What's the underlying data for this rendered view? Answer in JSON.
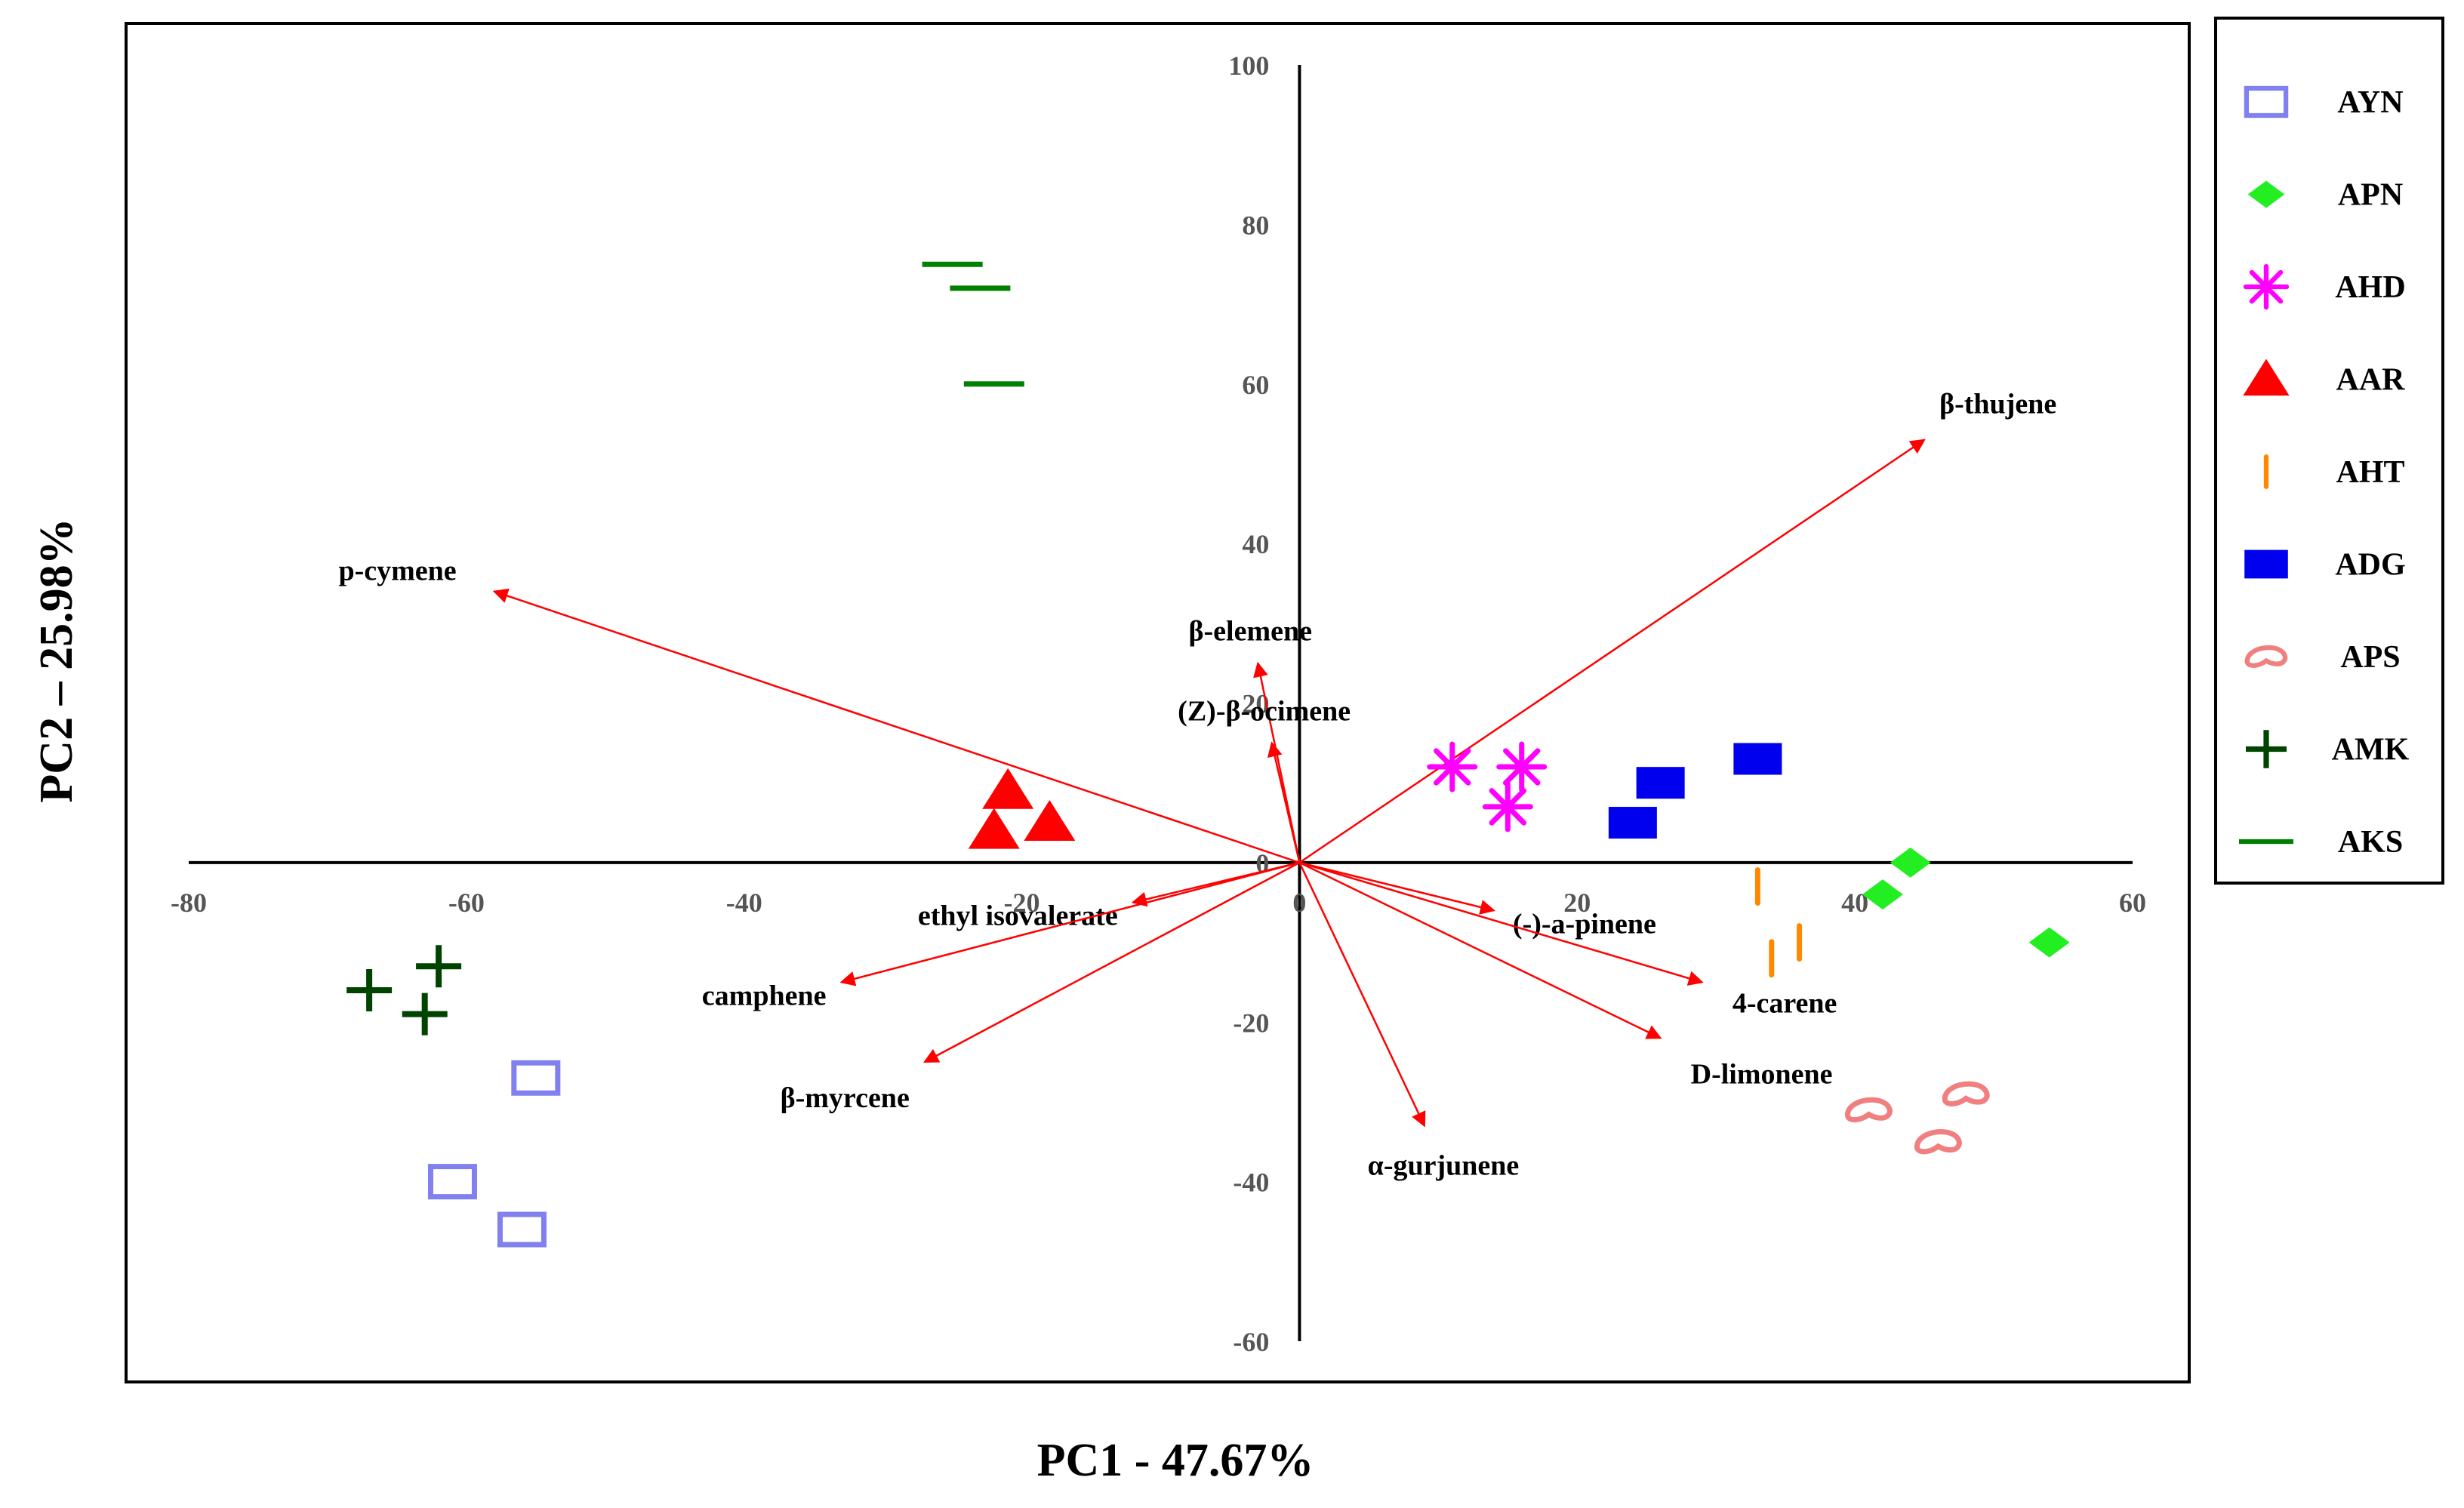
{
  "chart_data": {
    "type": "scatter",
    "subtype": "pca-biplot",
    "xlabel": "PC1 - 47.67%",
    "ylabel": "PC2 – 25.98%",
    "xlim": [
      -80,
      60
    ],
    "ylim": [
      -60,
      100
    ],
    "xticks": [
      -80,
      -60,
      -40,
      -20,
      0,
      20,
      40,
      60
    ],
    "yticks": [
      -60,
      -40,
      -20,
      0,
      20,
      40,
      60,
      80,
      100
    ],
    "legend_position": "right",
    "series": [
      {
        "name": "AYN",
        "marker": "open-square",
        "color": "#8080ee",
        "points": [
          [
            -55,
            -27
          ],
          [
            -61,
            -40
          ],
          [
            -56,
            -46
          ]
        ]
      },
      {
        "name": "APN",
        "marker": "diamond",
        "color": "#22ee22",
        "points": [
          [
            44,
            0
          ],
          [
            42,
            -4
          ],
          [
            54,
            -10
          ]
        ]
      },
      {
        "name": "AHD",
        "marker": "asterisk",
        "color": "#ff00ff",
        "points": [
          [
            11,
            12
          ],
          [
            16,
            12
          ],
          [
            15,
            7
          ]
        ]
      },
      {
        "name": "AAR",
        "marker": "triangle",
        "color": "#ff0000",
        "points": [
          [
            -21,
            9
          ],
          [
            -22,
            4
          ],
          [
            -18,
            5
          ]
        ]
      },
      {
        "name": "AHT",
        "marker": "vertical-bar",
        "color": "#ff8800",
        "points": [
          [
            33,
            -3
          ],
          [
            36,
            -10
          ],
          [
            34,
            -12
          ]
        ]
      },
      {
        "name": "ADG",
        "marker": "filled-square",
        "color": "#0000ee",
        "points": [
          [
            33,
            13
          ],
          [
            26,
            10
          ],
          [
            24,
            5
          ]
        ]
      },
      {
        "name": "APS",
        "marker": "ring",
        "color": "#f08080",
        "points": [
          [
            48,
            -29
          ],
          [
            41,
            -31
          ],
          [
            46,
            -35
          ]
        ]
      },
      {
        "name": "AMK",
        "marker": "plus",
        "color": "#004400",
        "points": [
          [
            -62,
            -13
          ],
          [
            -67,
            -16
          ],
          [
            -63,
            -19
          ]
        ]
      },
      {
        "name": "AKS",
        "marker": "dash",
        "color": "#008000",
        "points": [
          [
            -25,
            75
          ],
          [
            -23,
            72
          ],
          [
            -22,
            60
          ]
        ]
      }
    ],
    "loadings": [
      {
        "label": "β-thujene",
        "x": 45,
        "y": 53
      },
      {
        "label": "p-cymene",
        "x": -58,
        "y": 34
      },
      {
        "label": "β-elemene",
        "x": -3,
        "y": 25
      },
      {
        "label": "(Z)-β-ocimene",
        "x": -2,
        "y": 15
      },
      {
        "label": "ethyl isovalerate",
        "x": -12,
        "y": -5
      },
      {
        "label": "camphene",
        "x": -33,
        "y": -15
      },
      {
        "label": "β-myrcene",
        "x": -27,
        "y": -25
      },
      {
        "label": "α-gurjunene",
        "x": 9,
        "y": -33
      },
      {
        "label": "(-)-a-pinene",
        "x": 14,
        "y": -6
      },
      {
        "label": "4-carene",
        "x": 29,
        "y": -15
      },
      {
        "label": "D-limonene",
        "x": 26,
        "y": -22
      }
    ],
    "arrow_color": "#ff0000"
  }
}
